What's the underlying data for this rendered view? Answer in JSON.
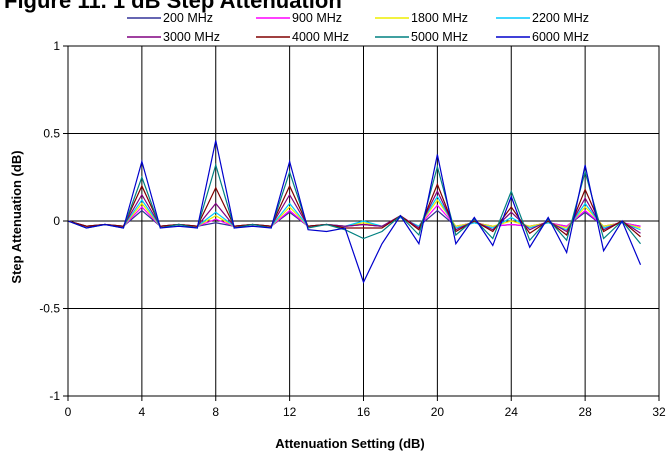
{
  "chart_data": {
    "type": "line",
    "title": "Figure 11. 1 dB Step Attenuation",
    "xlabel": "Attenuation Setting (dB)",
    "ylabel": "Step Attenuation (dB)",
    "xlim": [
      0,
      32
    ],
    "ylim": [
      -1,
      1
    ],
    "xticks": [
      0,
      4,
      8,
      12,
      16,
      20,
      24,
      28,
      32
    ],
    "yticks": [
      1,
      0.5,
      0,
      -0.5,
      -1
    ],
    "grid": "vertical and horizontal at major ticks",
    "legend_position": "top",
    "x": [
      0,
      1,
      2,
      3,
      4,
      5,
      6,
      7,
      8,
      9,
      10,
      11,
      12,
      13,
      14,
      15,
      16,
      17,
      18,
      19,
      20,
      21,
      22,
      23,
      24,
      25,
      26,
      27,
      28,
      29,
      30,
      31
    ],
    "series": [
      {
        "name": "200 MHz",
        "color": "#333399",
        "values": [
          0,
          -0.03,
          -0.02,
          -0.03,
          0.06,
          -0.03,
          -0.02,
          -0.03,
          -0.01,
          -0.03,
          -0.02,
          -0.03,
          0.05,
          -0.03,
          -0.02,
          -0.03,
          -0.02,
          -0.03,
          0.02,
          -0.03,
          0.06,
          -0.03,
          -0.01,
          -0.03,
          -0.02,
          -0.03,
          -0.01,
          -0.03,
          0.05,
          -0.03,
          -0.01,
          -0.03
        ]
      },
      {
        "name": "900 MHz",
        "color": "#FF00FF",
        "values": [
          0,
          -0.03,
          -0.02,
          -0.03,
          0.08,
          -0.03,
          -0.02,
          -0.03,
          0.01,
          -0.03,
          -0.02,
          -0.03,
          0.06,
          -0.03,
          -0.02,
          -0.03,
          -0.02,
          -0.03,
          0.02,
          -0.03,
          0.09,
          -0.03,
          -0.01,
          -0.03,
          -0.02,
          -0.03,
          -0.01,
          -0.03,
          0.06,
          -0.03,
          -0.01,
          -0.03
        ]
      },
      {
        "name": "1800 MHz",
        "color": "#EEEE00",
        "values": [
          0,
          -0.03,
          -0.02,
          -0.03,
          0.1,
          -0.03,
          -0.02,
          -0.03,
          0.03,
          -0.03,
          -0.02,
          -0.03,
          0.08,
          -0.03,
          -0.02,
          -0.03,
          -0.01,
          -0.03,
          0.02,
          -0.03,
          0.12,
          -0.03,
          -0.01,
          -0.03,
          0,
          -0.03,
          -0.01,
          -0.04,
          0.08,
          -0.03,
          -0.01,
          -0.04
        ]
      },
      {
        "name": "2200 MHz",
        "color": "#00CCFF",
        "values": [
          0,
          -0.03,
          -0.02,
          -0.03,
          0.12,
          -0.03,
          -0.02,
          -0.03,
          0.05,
          -0.03,
          -0.02,
          -0.03,
          0.1,
          -0.03,
          -0.02,
          -0.03,
          0,
          -0.03,
          0.02,
          -0.03,
          0.14,
          -0.04,
          -0.01,
          -0.04,
          0.02,
          -0.04,
          -0.01,
          -0.05,
          0.1,
          -0.04,
          -0.01,
          -0.05
        ]
      },
      {
        "name": "3000 MHz",
        "color": "#800080",
        "values": [
          0,
          -0.03,
          -0.02,
          -0.03,
          0.15,
          -0.03,
          -0.02,
          -0.03,
          0.1,
          -0.03,
          -0.02,
          -0.03,
          0.15,
          -0.03,
          -0.02,
          -0.03,
          -0.02,
          -0.03,
          0.03,
          -0.04,
          0.17,
          -0.05,
          0,
          -0.05,
          0.05,
          -0.05,
          0,
          -0.06,
          0.13,
          -0.05,
          0,
          -0.07
        ]
      },
      {
        "name": "4000 MHz",
        "color": "#800000",
        "values": [
          0,
          -0.03,
          -0.02,
          -0.03,
          0.2,
          -0.03,
          -0.02,
          -0.03,
          0.19,
          -0.03,
          -0.02,
          -0.03,
          0.2,
          -0.03,
          -0.02,
          -0.04,
          -0.04,
          -0.04,
          0.03,
          -0.05,
          0.21,
          -0.06,
          0,
          -0.06,
          0.08,
          -0.07,
          0,
          -0.08,
          0.18,
          -0.06,
          0,
          -0.09
        ]
      },
      {
        "name": "5000 MHz",
        "color": "#008080",
        "values": [
          0,
          -0.04,
          -0.02,
          -0.04,
          0.25,
          -0.04,
          -0.02,
          -0.04,
          0.32,
          -0.04,
          -0.02,
          -0.04,
          0.28,
          -0.04,
          -0.02,
          -0.05,
          -0.1,
          -0.06,
          0.03,
          -0.08,
          0.31,
          -0.08,
          0.01,
          -0.1,
          0.17,
          -0.11,
          0.01,
          -0.11,
          0.28,
          -0.1,
          0,
          -0.13
        ]
      },
      {
        "name": "6000 MHz",
        "color": "#0000CC",
        "values": [
          0,
          -0.04,
          -0.02,
          -0.04,
          0.34,
          -0.04,
          -0.03,
          -0.04,
          0.46,
          -0.04,
          -0.03,
          -0.04,
          0.34,
          -0.05,
          -0.06,
          -0.04,
          -0.35,
          -0.13,
          0.03,
          -0.13,
          0.38,
          -0.13,
          0.02,
          -0.14,
          0.14,
          -0.15,
          0.02,
          -0.18,
          0.32,
          -0.17,
          0,
          -0.25
        ]
      }
    ]
  }
}
